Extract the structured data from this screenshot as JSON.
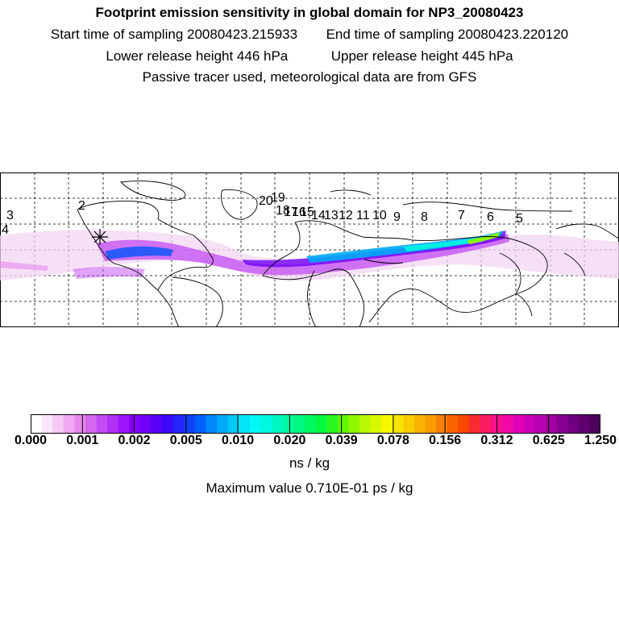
{
  "header": {
    "title": "Footprint emission sensitivity in global domain for NP3_20080423",
    "start_sampling": "Start time of sampling 20080423.215933",
    "end_sampling": "End time of sampling 20080423.220120",
    "lower_release": "Lower release height  446 hPa",
    "upper_release": "Upper release height  445 hPa",
    "note": "Passive tracer used, meteorological data are from GFS"
  },
  "map": {
    "day_labels": [
      "3",
      "4",
      "2",
      "20",
      "19",
      "18",
      "17",
      "16",
      "15",
      "14",
      "13",
      "12",
      "11",
      "10",
      "9",
      "8",
      "7",
      "6",
      "5"
    ],
    "release_marker": "release-point-star"
  },
  "colorbar": {
    "tick_labels": [
      "0.000",
      "0.001",
      "0.002",
      "0.005",
      "0.010",
      "0.020",
      "0.039",
      "0.078",
      "0.156",
      "0.312",
      "0.625",
      "1.250"
    ],
    "colors": [
      "#ffffff",
      "#fbe5fb",
      "#f5c8f5",
      "#f0a8f0",
      "#e888ee",
      "#d266ee",
      "#c24cf2",
      "#b030f4",
      "#9c14f8",
      "#8400fa",
      "#7000f8",
      "#5a00f8",
      "#3c08f8",
      "#2424f8",
      "#1040f8",
      "#0060f8",
      "#0088f8",
      "#00a8f8",
      "#00c8f8",
      "#00e4f8",
      "#00f8f4",
      "#00f8e0",
      "#00f8c0",
      "#00f8a0",
      "#00f880",
      "#00f860",
      "#00f840",
      "#28f820",
      "#60f800",
      "#90f800",
      "#b8f800",
      "#d8f800",
      "#f8f800",
      "#f8e400",
      "#f8cc00",
      "#f8b400",
      "#f89c00",
      "#f88000",
      "#f86400",
      "#f84800",
      "#f82c30",
      "#f81c60",
      "#f8108c",
      "#f008a8",
      "#e000b8",
      "#cc00b8",
      "#b800b0",
      "#a000a0",
      "#880090",
      "#700080",
      "#600070",
      "#4c005c"
    ],
    "units": "ns / kg",
    "max_value": "Maximum value  0.710E-01 ps / kg"
  }
}
